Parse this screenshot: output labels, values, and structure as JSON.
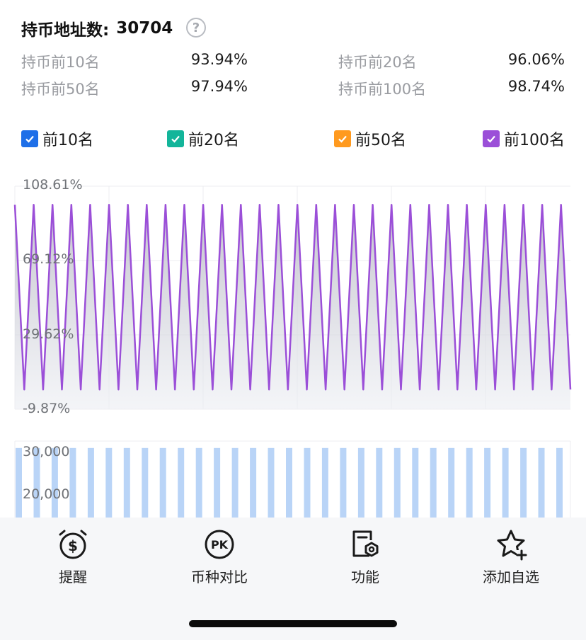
{
  "header": {
    "label": "持币地址数:",
    "value": "30704"
  },
  "stats": [
    {
      "label": "持币前10名",
      "value": "93.94%"
    },
    {
      "label": "持币前20名",
      "value": "96.06%"
    },
    {
      "label": "持币前50名",
      "value": "97.94%"
    },
    {
      "label": "持币前100名",
      "value": "98.74%"
    }
  ],
  "legend": [
    {
      "label": "前10名",
      "color": "#1e6fe8"
    },
    {
      "label": "前20名",
      "color": "#13b59a"
    },
    {
      "label": "前50名",
      "color": "#ff9a1f"
    },
    {
      "label": "前100名",
      "color": "#9b4fd8"
    }
  ],
  "chart_data": [
    {
      "type": "line",
      "y_ticks": [
        "108.61%",
        "69.12%",
        "29.62%",
        "-9.87%"
      ],
      "ylim": [
        -9.87,
        108.61
      ],
      "series_color": "#9b4fd8",
      "high": 98.74,
      "low": 0.6,
      "values": [
        98.74,
        0.6,
        98.74,
        0.6,
        98.74,
        0.6,
        98.74,
        0.6,
        98.74,
        0.6,
        98.74,
        0.6,
        98.74,
        0.6,
        98.74,
        0.6,
        98.74,
        0.6,
        98.74,
        0.6,
        98.74,
        0.6,
        98.74,
        0.6,
        98.74,
        0.6,
        98.74,
        0.6,
        98.74,
        0.6,
        98.74,
        0.6,
        98.74,
        0.6,
        98.74,
        0.6,
        98.74,
        0.6,
        98.74,
        0.6,
        98.74,
        0.6,
        98.74,
        0.6,
        98.74,
        0.6,
        98.74,
        0.6,
        98.74,
        0.6,
        98.74,
        0.6,
        98.74,
        0.6,
        98.74,
        0.6,
        98.74,
        0.6,
        98.74,
        0.6
      ]
    },
    {
      "type": "bar",
      "y_ticks": [
        "30,000",
        "20,000"
      ],
      "bar_color": "#b9d4f7",
      "values": [
        30704,
        30704,
        30704,
        30704,
        30704,
        30704,
        30704,
        30704,
        30704,
        30704,
        30704,
        30704,
        30704,
        30704,
        30704,
        30704,
        30704,
        30704,
        30704,
        30704,
        30704,
        30704,
        30704,
        30704,
        30704,
        30704,
        30704,
        30704,
        30704,
        30704,
        30704
      ]
    }
  ],
  "nav": [
    {
      "label": "提醒",
      "icon": "alarm-dollar-icon"
    },
    {
      "label": "币种对比",
      "icon": "pk-icon"
    },
    {
      "label": "功能",
      "icon": "function-icon"
    },
    {
      "label": "添加自选",
      "icon": "star-add-icon"
    }
  ]
}
